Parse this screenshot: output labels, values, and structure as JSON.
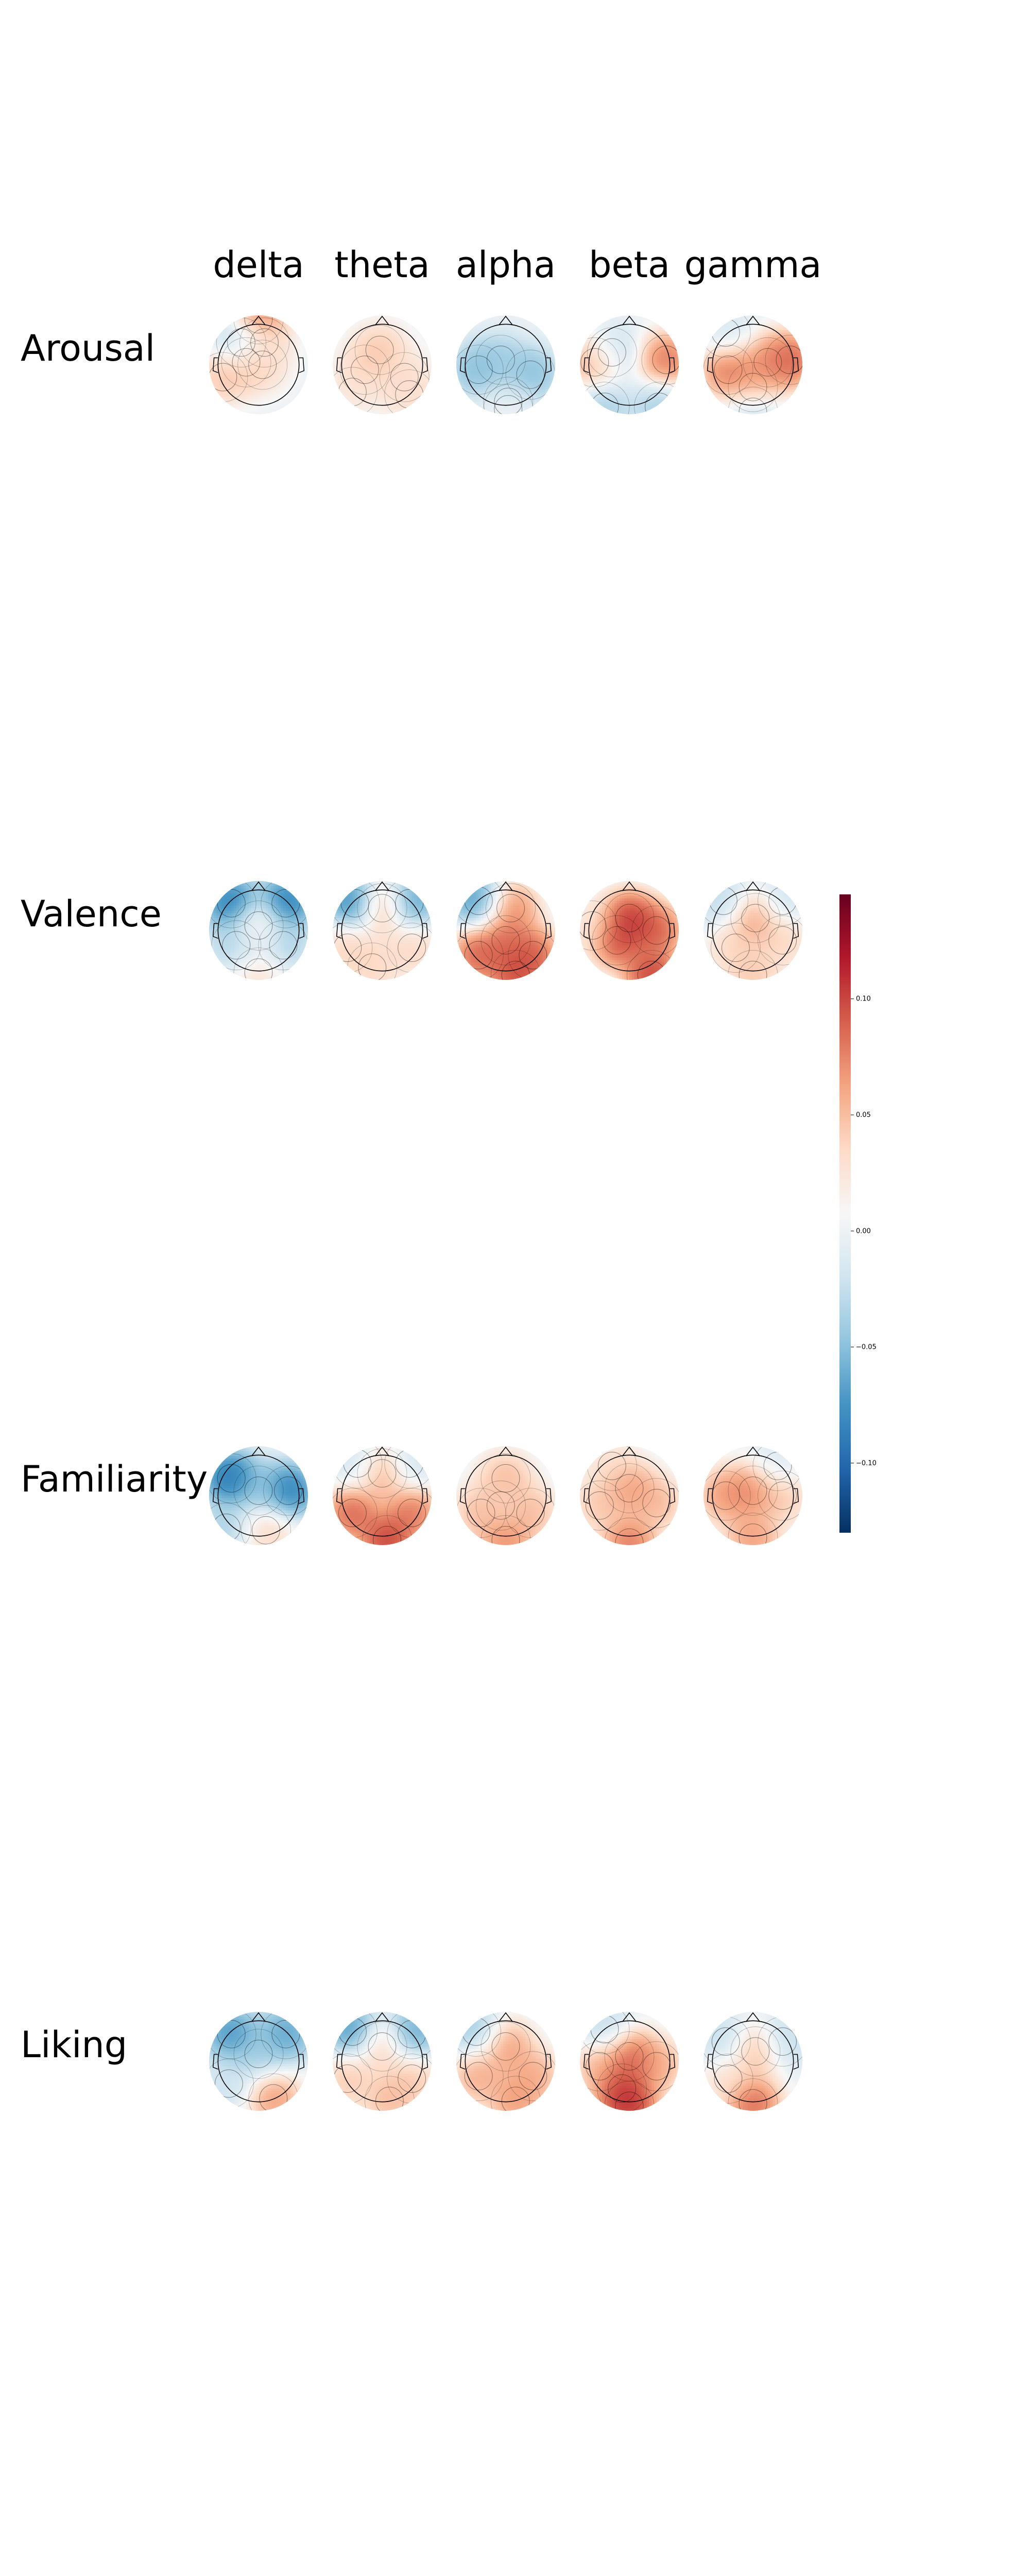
{
  "chart_data": {
    "type": "heatmap",
    "subtype": "eeg-topographic-map-grid",
    "colormap": "RdBu_r",
    "columns": [
      "delta",
      "theta",
      "alpha",
      "beta",
      "gamma"
    ],
    "rows": [
      "Arousal",
      "Valence",
      "Familiarity",
      "Liking"
    ],
    "colorbar": {
      "vmin": -0.13,
      "vmax": 0.145,
      "ticks": [
        -0.1,
        -0.05,
        0.0,
        0.05,
        0.1
      ],
      "tick_labels": [
        "−0.10",
        "−0.05",
        "0.00",
        "0.05",
        "0.10"
      ]
    },
    "colors": {
      "negative": "#053061",
      "neutral": "#f7f7f7",
      "positive": "#67001f"
    },
    "maps": {
      "Arousal": {
        "delta": [
          {
            "x": 0.12,
            "y": -0.45,
            "v": 0.04
          },
          {
            "x": 0.08,
            "y": 0.0,
            "v": 0.04
          },
          {
            "x": 0.0,
            "y": -0.92,
            "v": 0.11
          },
          {
            "x": -0.72,
            "y": 0.25,
            "v": 0.06
          },
          {
            "x": -0.35,
            "y": -0.45,
            "v": -0.07
          },
          {
            "x": -0.25,
            "y": -0.05,
            "v": 0.07
          }
        ],
        "theta": [
          {
            "x": -0.05,
            "y": -0.3,
            "v": 0.06
          },
          {
            "x": -0.35,
            "y": 0.1,
            "v": 0.05
          },
          {
            "x": 0.45,
            "y": 0.25,
            "v": 0.04
          },
          {
            "x": -0.6,
            "y": 0.55,
            "v": 0.03
          },
          {
            "x": 0.55,
            "y": 0.6,
            "v": 0.04
          }
        ],
        "alpha": [
          {
            "x": -0.1,
            "y": -0.1,
            "v": -0.05
          },
          {
            "x": -0.55,
            "y": 0.1,
            "v": -0.07
          },
          {
            "x": 0.5,
            "y": 0.2,
            "v": -0.07
          },
          {
            "x": 0.05,
            "y": 0.75,
            "v": -0.04
          },
          {
            "x": 0.05,
            "y": 0.9,
            "v": 0.03
          }
        ],
        "beta": [
          {
            "x": -0.7,
            "y": -0.05,
            "v": 0.09
          },
          {
            "x": 0.75,
            "y": -0.1,
            "v": 0.11
          },
          {
            "x": -0.35,
            "y": -0.25,
            "v": -0.04
          },
          {
            "x": -0.5,
            "y": 0.85,
            "v": -0.05
          },
          {
            "x": 0.6,
            "y": 0.85,
            "v": -0.05
          }
        ],
        "gamma": [
          {
            "x": -0.5,
            "y": 0.1,
            "v": 0.11
          },
          {
            "x": 0.3,
            "y": -0.05,
            "v": 0.09
          },
          {
            "x": 0.75,
            "y": -0.1,
            "v": 0.12
          },
          {
            "x": 0.0,
            "y": 0.45,
            "v": 0.08
          },
          {
            "x": -0.55,
            "y": -0.65,
            "v": -0.02
          },
          {
            "x": 0.0,
            "y": 0.95,
            "v": -0.04
          }
        ]
      },
      "Valence": {
        "delta": [
          {
            "x": 0.0,
            "y": -0.1,
            "v": 0.03
          },
          {
            "x": -0.55,
            "y": -0.55,
            "v": -0.12
          },
          {
            "x": 0.55,
            "y": -0.55,
            "v": -0.12
          },
          {
            "x": -0.45,
            "y": 0.3,
            "v": -0.05
          },
          {
            "x": 0.5,
            "y": 0.3,
            "v": -0.05
          },
          {
            "x": 0.0,
            "y": 0.85,
            "v": 0.04
          }
        ],
        "theta": [
          {
            "x": 0.0,
            "y": -0.45,
            "v": 0.09
          },
          {
            "x": -0.55,
            "y": -0.55,
            "v": -0.12
          },
          {
            "x": 0.55,
            "y": -0.55,
            "v": -0.1
          },
          {
            "x": -0.7,
            "y": 0.35,
            "v": 0.05
          },
          {
            "x": 0.6,
            "y": 0.35,
            "v": 0.05
          },
          {
            "x": -0.2,
            "y": 0.75,
            "v": 0.05
          }
        ],
        "alpha": [
          {
            "x": 0.0,
            "y": 0.2,
            "v": 0.11
          },
          {
            "x": -0.55,
            "y": -0.6,
            "v": -0.1
          },
          {
            "x": 0.1,
            "y": -0.45,
            "v": 0.1
          },
          {
            "x": -0.55,
            "y": 0.5,
            "v": 0.12
          },
          {
            "x": 0.55,
            "y": 0.5,
            "v": 0.12
          },
          {
            "x": 0.2,
            "y": 0.9,
            "v": 0.13
          }
        ],
        "beta": [
          {
            "x": 0.0,
            "y": -0.25,
            "v": 0.14
          },
          {
            "x": -0.25,
            "y": 0.2,
            "v": 0.13
          },
          {
            "x": 0.55,
            "y": 0.0,
            "v": 0.12
          },
          {
            "x": 0.45,
            "y": 0.9,
            "v": 0.14
          },
          {
            "x": -0.75,
            "y": -0.1,
            "v": 0.03
          }
        ],
        "gamma": [
          {
            "x": 0.05,
            "y": -0.25,
            "v": 0.09
          },
          {
            "x": -0.35,
            "y": 0.35,
            "v": 0.05
          },
          {
            "x": 0.6,
            "y": 0.2,
            "v": 0.05
          },
          {
            "x": -0.6,
            "y": -0.6,
            "v": -0.04
          },
          {
            "x": 0.6,
            "y": -0.6,
            "v": -0.03
          },
          {
            "x": 0.0,
            "y": 0.9,
            "v": 0.06
          }
        ]
      },
      "Familiarity": {
        "delta": [
          {
            "x": -0.55,
            "y": -0.35,
            "v": -0.13
          },
          {
            "x": 0.6,
            "y": -0.1,
            "v": -0.12
          },
          {
            "x": 0.0,
            "y": -0.1,
            "v": -0.05
          },
          {
            "x": 0.15,
            "y": 0.7,
            "v": 0.05
          },
          {
            "x": -0.65,
            "y": 0.65,
            "v": -0.05
          }
        ],
        "theta": [
          {
            "x": 0.0,
            "y": -0.45,
            "v": 0.09
          },
          {
            "x": -0.6,
            "y": 0.35,
            "v": 0.12
          },
          {
            "x": 0.6,
            "y": 0.35,
            "v": 0.11
          },
          {
            "x": 0.1,
            "y": 0.9,
            "v": 0.14
          },
          {
            "x": -0.5,
            "y": -0.65,
            "v": -0.03
          },
          {
            "x": 0.55,
            "y": -0.65,
            "v": -0.03
          }
        ],
        "alpha": [
          {
            "x": 0.0,
            "y": -0.35,
            "v": 0.07
          },
          {
            "x": -0.5,
            "y": 0.35,
            "v": 0.07
          },
          {
            "x": 0.5,
            "y": 0.35,
            "v": 0.07
          },
          {
            "x": 0.0,
            "y": 0.9,
            "v": 0.1
          },
          {
            "x": -0.1,
            "y": 0.2,
            "v": 0.04
          }
        ],
        "beta": [
          {
            "x": 0.0,
            "y": -0.15,
            "v": 0.09
          },
          {
            "x": -0.6,
            "y": 0.2,
            "v": 0.06
          },
          {
            "x": 0.55,
            "y": 0.15,
            "v": 0.07
          },
          {
            "x": 0.0,
            "y": 0.95,
            "v": 0.11
          },
          {
            "x": -0.35,
            "y": -0.6,
            "v": 0.04
          }
        ],
        "gamma": [
          {
            "x": 0.0,
            "y": -0.1,
            "v": 0.1
          },
          {
            "x": -0.55,
            "y": 0.0,
            "v": 0.09
          },
          {
            "x": 0.6,
            "y": 0.0,
            "v": 0.06
          },
          {
            "x": 0.0,
            "y": 0.85,
            "v": 0.09
          },
          {
            "x": 0.5,
            "y": -0.6,
            "v": -0.02
          }
        ]
      },
      "Liking": {
        "delta": [
          {
            "x": 0.0,
            "y": -0.15,
            "v": -0.05
          },
          {
            "x": -0.55,
            "y": -0.55,
            "v": -0.1
          },
          {
            "x": 0.55,
            "y": -0.55,
            "v": -0.09
          },
          {
            "x": 0.3,
            "y": 0.75,
            "v": 0.09
          },
          {
            "x": -0.6,
            "y": 0.45,
            "v": -0.03
          }
        ],
        "theta": [
          {
            "x": 0.0,
            "y": -0.3,
            "v": 0.06
          },
          {
            "x": -0.6,
            "y": -0.6,
            "v": -0.1
          },
          {
            "x": 0.6,
            "y": -0.55,
            "v": -0.09
          },
          {
            "x": -0.7,
            "y": 0.35,
            "v": 0.06
          },
          {
            "x": 0.6,
            "y": 0.35,
            "v": 0.06
          },
          {
            "x": 0.15,
            "y": 0.8,
            "v": 0.07
          }
        ],
        "alpha": [
          {
            "x": 0.0,
            "y": -0.3,
            "v": 0.09
          },
          {
            "x": -0.6,
            "y": -0.6,
            "v": -0.06
          },
          {
            "x": -0.55,
            "y": 0.3,
            "v": 0.08
          },
          {
            "x": 0.55,
            "y": 0.3,
            "v": 0.08
          },
          {
            "x": 0.2,
            "y": 0.8,
            "v": 0.09
          }
        ],
        "beta": [
          {
            "x": 0.0,
            "y": -0.1,
            "v": 0.12
          },
          {
            "x": -0.15,
            "y": 0.55,
            "v": 0.13
          },
          {
            "x": 0.55,
            "y": 0.1,
            "v": 0.08
          },
          {
            "x": -0.6,
            "y": 0.1,
            "v": 0.07
          },
          {
            "x": 0.0,
            "y": 0.9,
            "v": 0.14
          },
          {
            "x": -0.5,
            "y": -0.65,
            "v": -0.04
          }
        ],
        "gamma": [
          {
            "x": 0.05,
            "y": -0.2,
            "v": 0.08
          },
          {
            "x": -0.55,
            "y": -0.4,
            "v": -0.04
          },
          {
            "x": 0.6,
            "y": -0.4,
            "v": -0.04
          },
          {
            "x": -0.5,
            "y": 0.35,
            "v": 0.04
          },
          {
            "x": 0.0,
            "y": 0.85,
            "v": 0.12
          }
        ]
      }
    }
  }
}
